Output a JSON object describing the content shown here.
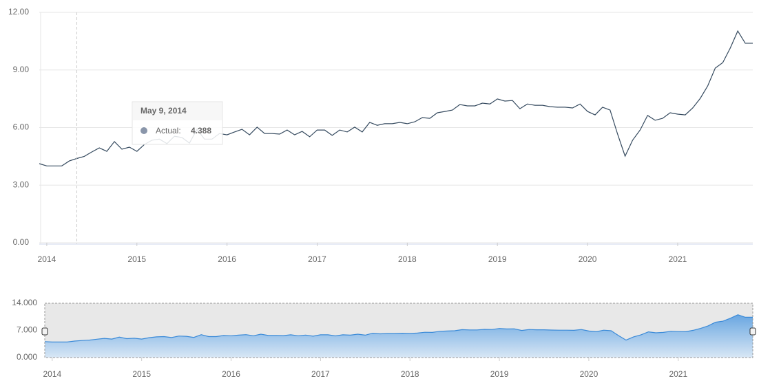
{
  "chart_data": {
    "type": "line",
    "color": "#34495e",
    "x": [
      "2013-12",
      "2014-01",
      "2014-02",
      "2014-03",
      "2014-04",
      "2014-05",
      "2014-06",
      "2014-07",
      "2014-08",
      "2014-09",
      "2014-10",
      "2014-11",
      "2014-12",
      "2015-01",
      "2015-02",
      "2015-03",
      "2015-04",
      "2015-05",
      "2015-06",
      "2015-07",
      "2015-08",
      "2015-09",
      "2015-10",
      "2015-11",
      "2015-12",
      "2016-01",
      "2016-02",
      "2016-03",
      "2016-04",
      "2016-05",
      "2016-06",
      "2016-07",
      "2016-08",
      "2016-09",
      "2016-10",
      "2016-11",
      "2016-12",
      "2017-01",
      "2017-02",
      "2017-03",
      "2017-04",
      "2017-05",
      "2017-06",
      "2017-07",
      "2017-08",
      "2017-09",
      "2017-10",
      "2017-11",
      "2017-12",
      "2018-01",
      "2018-02",
      "2018-03",
      "2018-04",
      "2018-05",
      "2018-06",
      "2018-07",
      "2018-08",
      "2018-09",
      "2018-10",
      "2018-11",
      "2018-12",
      "2019-01",
      "2019-02",
      "2019-03",
      "2019-04",
      "2019-05",
      "2019-06",
      "2019-07",
      "2019-08",
      "2019-09",
      "2019-10",
      "2019-11",
      "2019-12",
      "2020-01",
      "2020-02",
      "2020-03",
      "2020-04",
      "2020-05",
      "2020-06",
      "2020-07",
      "2020-08",
      "2020-09",
      "2020-10",
      "2020-11",
      "2020-12",
      "2021-01",
      "2021-02",
      "2021-03",
      "2021-04",
      "2021-05",
      "2021-06",
      "2021-07",
      "2021-08",
      "2021-09",
      "2021-10",
      "2021-11"
    ],
    "values": [
      4.12,
      4.0,
      4.0,
      4.0,
      4.26,
      4.388,
      4.5,
      4.73,
      4.94,
      4.76,
      5.27,
      4.87,
      4.98,
      4.76,
      5.12,
      5.34,
      5.4,
      5.16,
      5.55,
      5.48,
      5.19,
      5.91,
      5.4,
      5.4,
      5.69,
      5.62,
      5.77,
      5.91,
      5.62,
      6.02,
      5.69,
      5.69,
      5.66,
      5.87,
      5.62,
      5.8,
      5.52,
      5.87,
      5.87,
      5.59,
      5.87,
      5.77,
      6.02,
      5.77,
      6.27,
      6.12,
      6.2,
      6.2,
      6.27,
      6.2,
      6.3,
      6.52,
      6.48,
      6.77,
      6.84,
      6.91,
      7.2,
      7.13,
      7.13,
      7.27,
      7.23,
      7.49,
      7.38,
      7.41,
      6.98,
      7.23,
      7.16,
      7.16,
      7.09,
      7.06,
      7.06,
      7.02,
      7.23,
      6.84,
      6.66,
      7.06,
      6.91,
      5.66,
      4.51,
      5.34,
      5.87,
      6.63,
      6.38,
      6.48,
      6.77,
      6.7,
      6.66,
      7.02,
      7.52,
      8.17,
      9.1,
      9.38,
      10.14,
      11.03,
      10.39,
      10.39
    ],
    "xlim": [
      "2013-12",
      "2021-11"
    ],
    "xticks": [
      2014,
      2015,
      2016,
      2017,
      2018,
      2019,
      2020,
      2021
    ],
    "ylim": [
      0,
      12
    ],
    "yticks": [
      {
        "value": 0,
        "label": "0.00"
      },
      {
        "value": 3,
        "label": "3.00"
      },
      {
        "value": 6,
        "label": "6.00"
      },
      {
        "value": 9,
        "label": "9.00"
      },
      {
        "value": 12,
        "label": "12.00"
      }
    ],
    "grid": true,
    "tooltip": {
      "date": "May 9, 2014",
      "label": "Actual:",
      "value": 4.388,
      "x": "2014-05"
    },
    "navigator": {
      "color": "#3a8ad8",
      "ylim": [
        0,
        14
      ],
      "yticks": [
        {
          "value": 0,
          "label": "0.000"
        },
        {
          "value": 7,
          "label": "7.000"
        },
        {
          "value": 14,
          "label": "14.000"
        }
      ]
    }
  }
}
